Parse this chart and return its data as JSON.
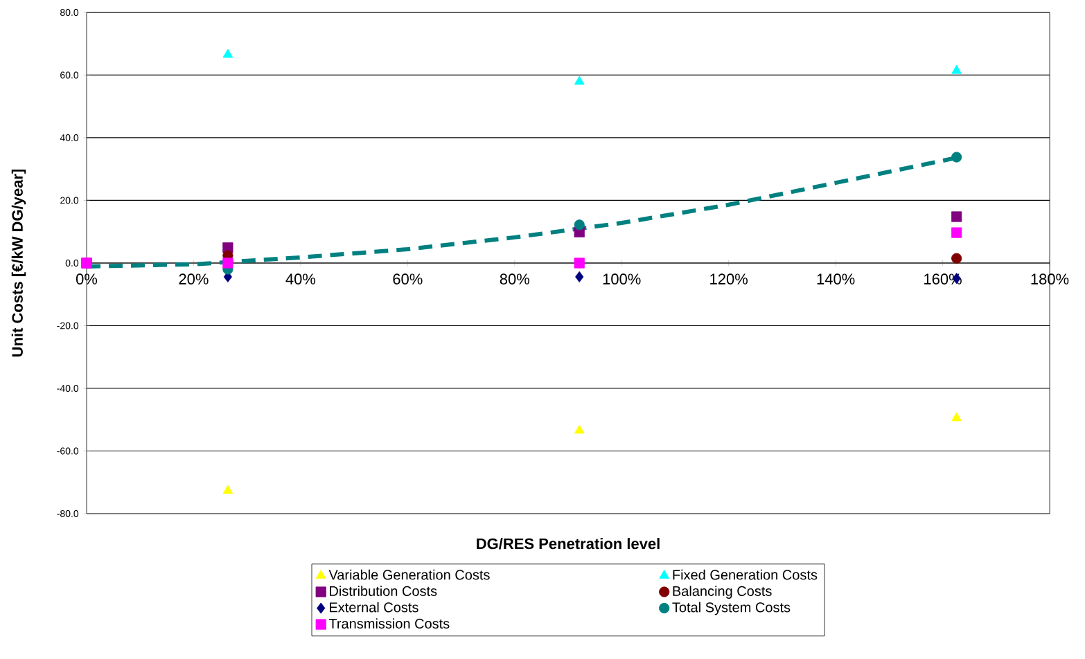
{
  "chart_data": {
    "type": "scatter",
    "xlabel": "DG/RES Penetration level",
    "ylabel": "Unit Costs [€/kW DG/year]",
    "xlim": [
      0,
      180
    ],
    "ylim": [
      -80,
      80
    ],
    "xticks": [
      {
        "value": 0,
        "label": "0%"
      },
      {
        "value": 20,
        "label": "20%"
      },
      {
        "value": 40,
        "label": "40%"
      },
      {
        "value": 60,
        "label": "60%"
      },
      {
        "value": 80,
        "label": "80%"
      },
      {
        "value": 100,
        "label": "100%"
      },
      {
        "value": 120,
        "label": "120%"
      },
      {
        "value": 140,
        "label": "140%"
      },
      {
        "value": 160,
        "label": "160%"
      },
      {
        "value": 180,
        "label": "180%"
      }
    ],
    "yticks": [
      {
        "value": -80,
        "label": "-80.0"
      },
      {
        "value": -60,
        "label": "-60.0"
      },
      {
        "value": -40,
        "label": "-40.0"
      },
      {
        "value": -20,
        "label": "-20.0"
      },
      {
        "value": 0,
        "label": "0.0"
      },
      {
        "value": 20,
        "label": "20.0"
      },
      {
        "value": 40,
        "label": "40.0"
      },
      {
        "value": 60,
        "label": "60.0"
      },
      {
        "value": 80,
        "label": "80.0"
      }
    ],
    "grid": "y",
    "legend": "bottom",
    "series": [
      {
        "name": "Variable Generation Costs",
        "color": "#ffff00",
        "marker": "triangle",
        "x": [
          26.4,
          92.1,
          162.6
        ],
        "values": [
          -72.7,
          -53.5,
          -49.5
        ]
      },
      {
        "name": "Fixed Generation Costs",
        "color": "#00ffff",
        "marker": "triangle",
        "x": [
          26.4,
          92.1,
          162.6
        ],
        "values": [
          66.5,
          57.9,
          61.4
        ]
      },
      {
        "name": "Distribution Costs",
        "color": "#800080",
        "marker": "square",
        "x": [
          0,
          26.4,
          92.1,
          162.6
        ],
        "values": [
          0,
          4.9,
          9.9,
          14.8
        ]
      },
      {
        "name": "Balancing Costs",
        "color": "#800000",
        "marker": "circle",
        "x": [
          26.4,
          92.1,
          162.6
        ],
        "values": [
          2.4,
          null,
          1.5
        ]
      },
      {
        "name": "External Costs",
        "color": "#000080",
        "marker": "diamond",
        "x": [
          26.4,
          92.1,
          162.6
        ],
        "values": [
          -4.4,
          -4.4,
          -4.9
        ]
      },
      {
        "name": "Total System Costs",
        "color": "#008080",
        "marker": "circle",
        "x": [
          26.4,
          92.1,
          162.6
        ],
        "values": [
          -2.0,
          12.2,
          33.8
        ]
      },
      {
        "name": "Transmission Costs",
        "color": "#ff00ff",
        "marker": "square",
        "x": [
          0,
          26.4,
          92.1,
          162.6
        ],
        "values": [
          0,
          0,
          0,
          9.7
        ]
      },
      {
        "type": "line",
        "color": "#008080",
        "line_style": "dashed",
        "marker": "none",
        "x": [
          0,
          20,
          40,
          60,
          80,
          100,
          120,
          140,
          162.6
        ],
        "values": [
          -1.1,
          -0.4,
          1.8,
          4.4,
          8.2,
          12.8,
          18.6,
          25.6,
          33.6
        ]
      }
    ]
  }
}
